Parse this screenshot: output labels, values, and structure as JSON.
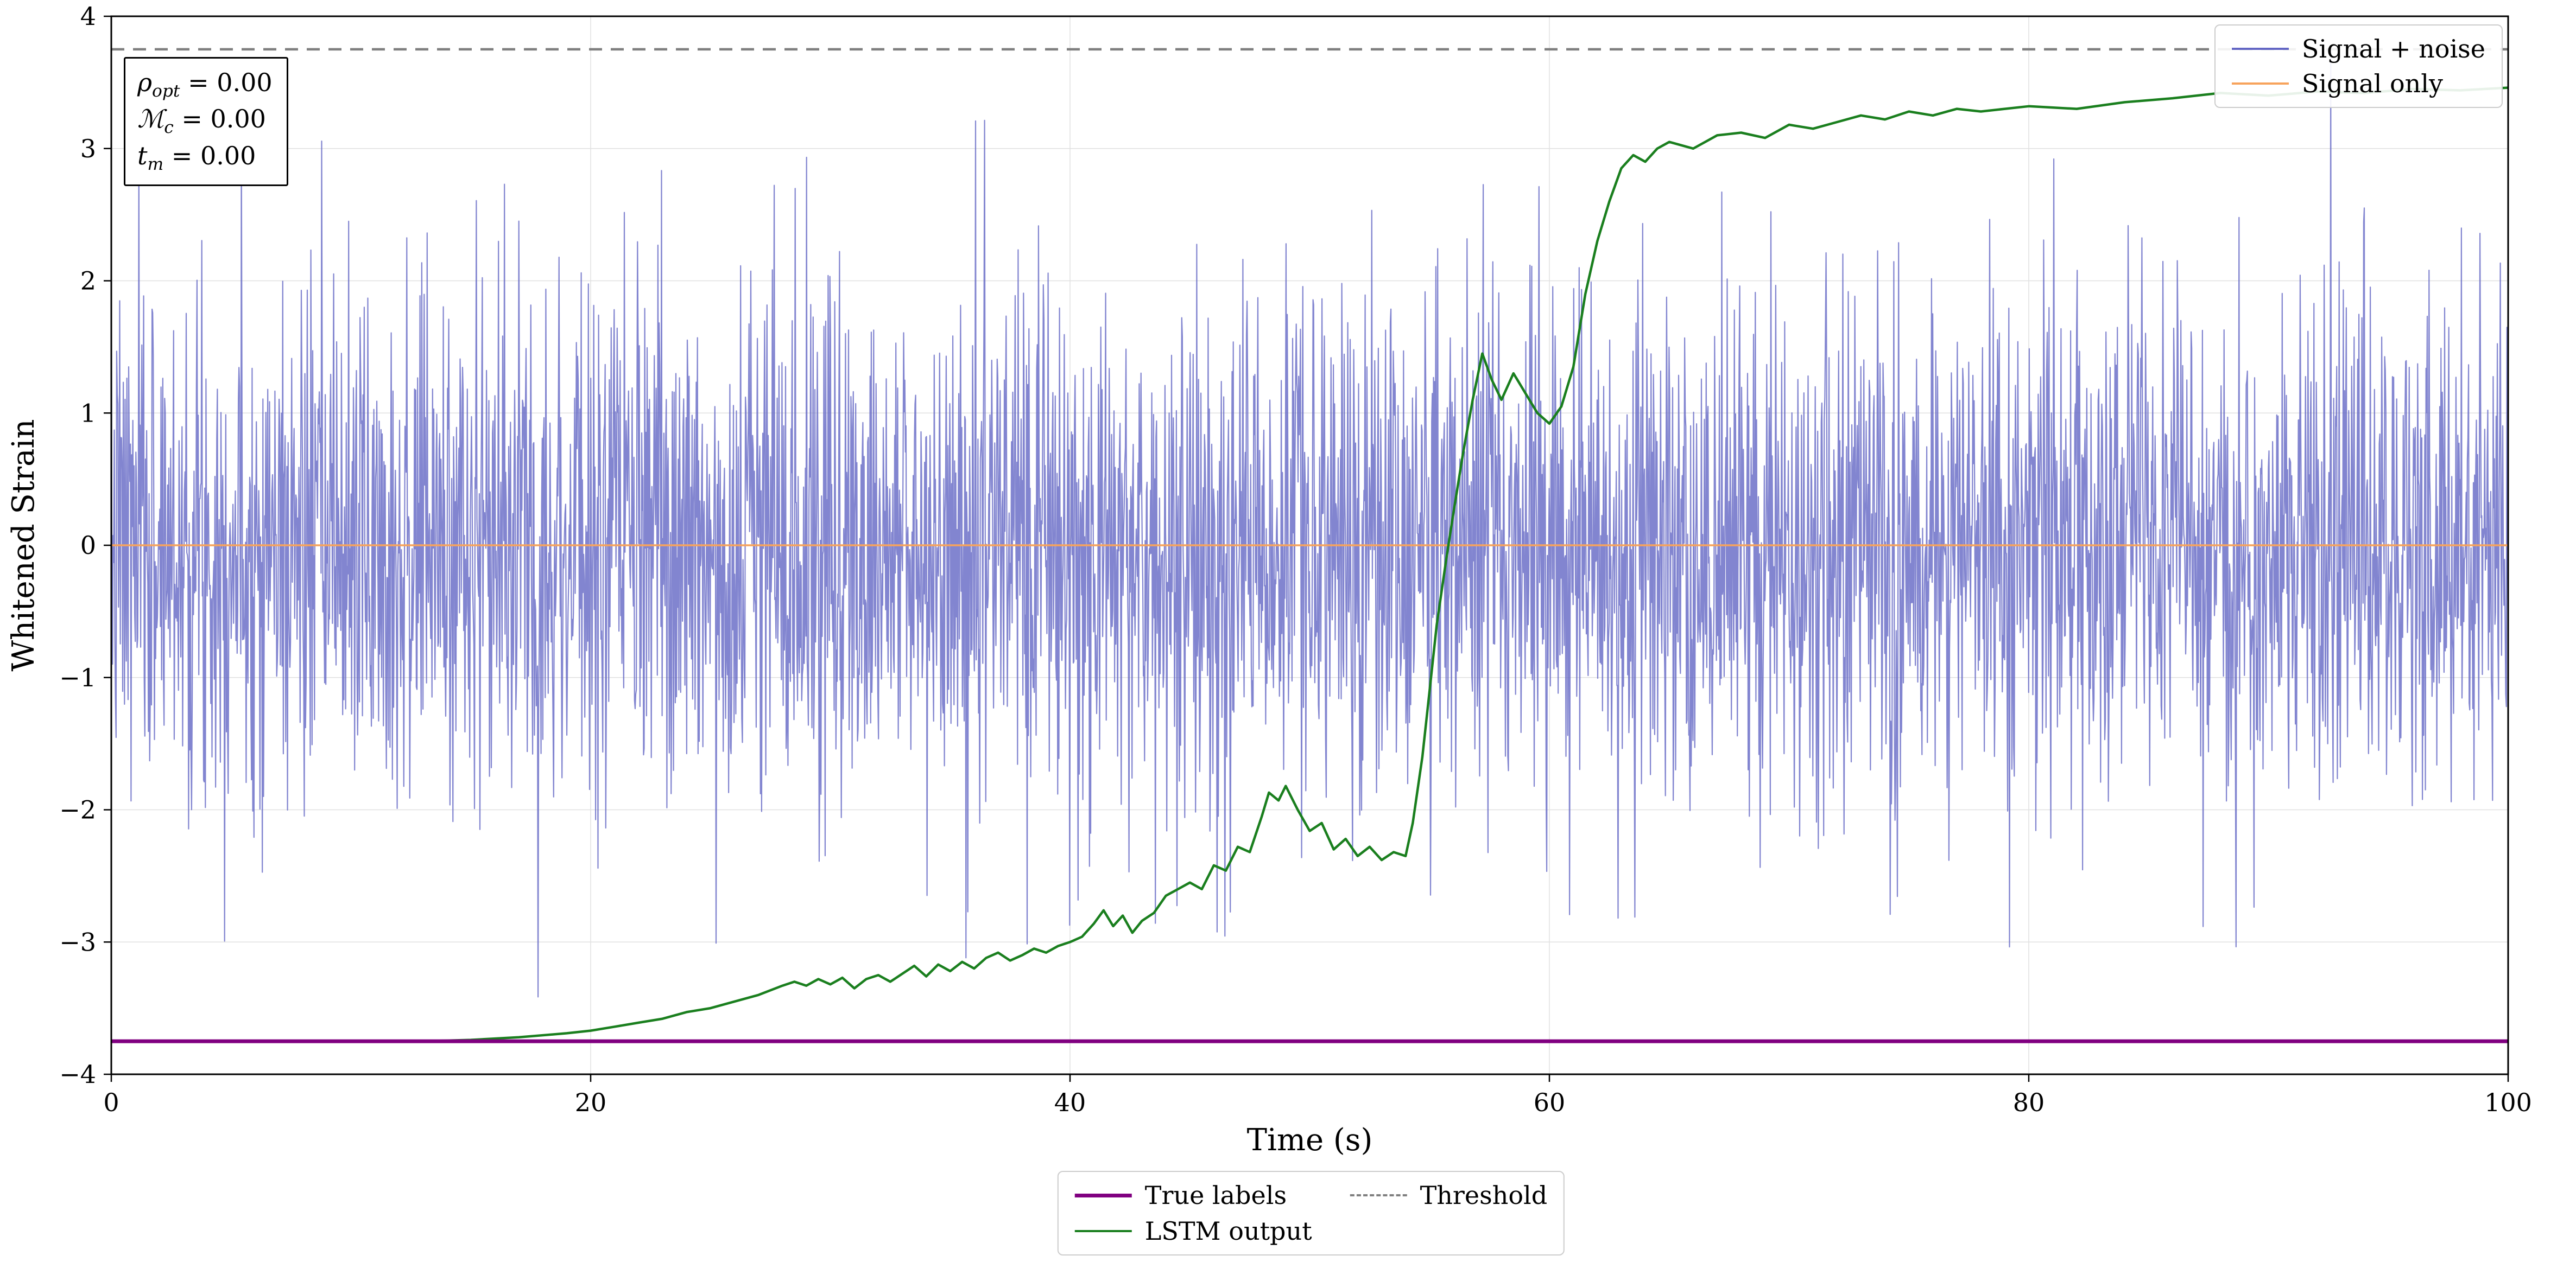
{
  "figure": {
    "annotation": {
      "lines": [
        {
          "symbol": "ρ",
          "sub": "opt",
          "rest": " = 0.00"
        },
        {
          "symbol": "ℳ",
          "sub": "c",
          "rest": " = 0.00"
        },
        {
          "symbol": "t",
          "sub": "m",
          "rest": " = 0.00"
        }
      ]
    },
    "legend_top": [
      {
        "label": "Signal + noise",
        "series": 0
      },
      {
        "label": "Signal only",
        "series": 1
      }
    ],
    "legend_bottom": [
      {
        "label": "True labels",
        "series": 2
      },
      {
        "label": "LSTM output",
        "series": 4
      },
      {
        "label": "Threshold",
        "series": 3
      }
    ]
  },
  "chart_data": {
    "type": "line",
    "title": "",
    "xlabel": "Time (s)",
    "ylabel": "Whitened Strain",
    "xlim": [
      0,
      100
    ],
    "ylim": [
      -4,
      4
    ],
    "xticks": [
      0,
      20,
      40,
      60,
      80,
      100
    ],
    "yticks": [
      -4,
      -3,
      -2,
      -1,
      0,
      1,
      2,
      3,
      4
    ],
    "grid": true,
    "grid_color": "#e0e0e0",
    "legend_position": [
      "upper right inside",
      "lower center outside"
    ],
    "series": [
      {
        "name": "Signal + noise",
        "type": "noise",
        "mean": 0,
        "std": 0.95,
        "n": 4000,
        "seed": 7,
        "color": "#6366c4",
        "opacity": 0.8,
        "linewidth": 2.2
      },
      {
        "name": "Signal only",
        "type": "constant",
        "y": 0,
        "color": "#f7a35c",
        "linewidth": 3.5
      },
      {
        "name": "True labels",
        "type": "constant",
        "y": -3.75,
        "color": "#800080",
        "linewidth": 7
      },
      {
        "name": "Threshold",
        "type": "constant",
        "y": 3.75,
        "color": "#7f7f7f",
        "linewidth": 4.5,
        "dash": [
          24,
          16
        ]
      },
      {
        "name": "LSTM output",
        "type": "points",
        "color": "#1a7f1e",
        "linewidth": 4.5,
        "points": [
          [
            0,
            -3.75
          ],
          [
            5,
            -3.75
          ],
          [
            10,
            -3.75
          ],
          [
            13,
            -3.75
          ],
          [
            15,
            -3.74
          ],
          [
            17,
            -3.72
          ],
          [
            19,
            -3.69
          ],
          [
            20,
            -3.67
          ],
          [
            21,
            -3.64
          ],
          [
            22,
            -3.61
          ],
          [
            23,
            -3.58
          ],
          [
            24,
            -3.53
          ],
          [
            25,
            -3.5
          ],
          [
            26,
            -3.45
          ],
          [
            27,
            -3.4
          ],
          [
            28,
            -3.33
          ],
          [
            28.5,
            -3.3
          ],
          [
            29,
            -3.33
          ],
          [
            29.5,
            -3.28
          ],
          [
            30,
            -3.32
          ],
          [
            30.5,
            -3.27
          ],
          [
            31,
            -3.35
          ],
          [
            31.5,
            -3.28
          ],
          [
            32,
            -3.25
          ],
          [
            32.5,
            -3.3
          ],
          [
            33,
            -3.24
          ],
          [
            33.5,
            -3.18
          ],
          [
            34,
            -3.26
          ],
          [
            34.5,
            -3.17
          ],
          [
            35,
            -3.22
          ],
          [
            35.5,
            -3.15
          ],
          [
            36,
            -3.2
          ],
          [
            36.5,
            -3.12
          ],
          [
            37,
            -3.08
          ],
          [
            37.5,
            -3.14
          ],
          [
            38,
            -3.1
          ],
          [
            38.5,
            -3.05
          ],
          [
            39,
            -3.08
          ],
          [
            39.5,
            -3.03
          ],
          [
            40,
            -3.0
          ],
          [
            40.5,
            -2.96
          ],
          [
            41,
            -2.86
          ],
          [
            41.4,
            -2.76
          ],
          [
            41.8,
            -2.88
          ],
          [
            42.2,
            -2.8
          ],
          [
            42.6,
            -2.93
          ],
          [
            43,
            -2.84
          ],
          [
            43.5,
            -2.78
          ],
          [
            44,
            -2.65
          ],
          [
            44.5,
            -2.6
          ],
          [
            45,
            -2.55
          ],
          [
            45.5,
            -2.6
          ],
          [
            46,
            -2.42
          ],
          [
            46.5,
            -2.46
          ],
          [
            47,
            -2.28
          ],
          [
            47.5,
            -2.32
          ],
          [
            48,
            -2.05
          ],
          [
            48.3,
            -1.87
          ],
          [
            48.7,
            -1.93
          ],
          [
            49,
            -1.82
          ],
          [
            49.5,
            -2.0
          ],
          [
            50,
            -2.16
          ],
          [
            50.5,
            -2.1
          ],
          [
            51,
            -2.3
          ],
          [
            51.5,
            -2.22
          ],
          [
            52,
            -2.35
          ],
          [
            52.5,
            -2.28
          ],
          [
            53,
            -2.38
          ],
          [
            53.5,
            -2.32
          ],
          [
            54,
            -2.35
          ],
          [
            54.3,
            -2.1
          ],
          [
            54.7,
            -1.6
          ],
          [
            55,
            -1.1
          ],
          [
            55.3,
            -0.6
          ],
          [
            55.7,
            -0.1
          ],
          [
            56,
            0.25
          ],
          [
            56.4,
            0.7
          ],
          [
            56.8,
            1.1
          ],
          [
            57.2,
            1.45
          ],
          [
            57.6,
            1.25
          ],
          [
            58,
            1.1
          ],
          [
            58.5,
            1.3
          ],
          [
            59,
            1.15
          ],
          [
            59.5,
            1.0
          ],
          [
            60,
            0.92
          ],
          [
            60.5,
            1.05
          ],
          [
            61,
            1.35
          ],
          [
            61.5,
            1.9
          ],
          [
            62,
            2.3
          ],
          [
            62.5,
            2.6
          ],
          [
            63,
            2.85
          ],
          [
            63.5,
            2.95
          ],
          [
            64,
            2.9
          ],
          [
            64.5,
            3.0
          ],
          [
            65,
            3.05
          ],
          [
            66,
            3.0
          ],
          [
            67,
            3.1
          ],
          [
            68,
            3.12
          ],
          [
            69,
            3.08
          ],
          [
            70,
            3.18
          ],
          [
            71,
            3.15
          ],
          [
            72,
            3.2
          ],
          [
            73,
            3.25
          ],
          [
            74,
            3.22
          ],
          [
            75,
            3.28
          ],
          [
            76,
            3.25
          ],
          [
            77,
            3.3
          ],
          [
            78,
            3.28
          ],
          [
            79,
            3.3
          ],
          [
            80,
            3.32
          ],
          [
            82,
            3.3
          ],
          [
            84,
            3.35
          ],
          [
            86,
            3.38
          ],
          [
            88,
            3.42
          ],
          [
            90,
            3.4
          ],
          [
            92,
            3.43
          ],
          [
            94,
            3.42
          ],
          [
            96,
            3.45
          ],
          [
            98,
            3.44
          ],
          [
            100,
            3.46
          ]
        ]
      }
    ]
  }
}
